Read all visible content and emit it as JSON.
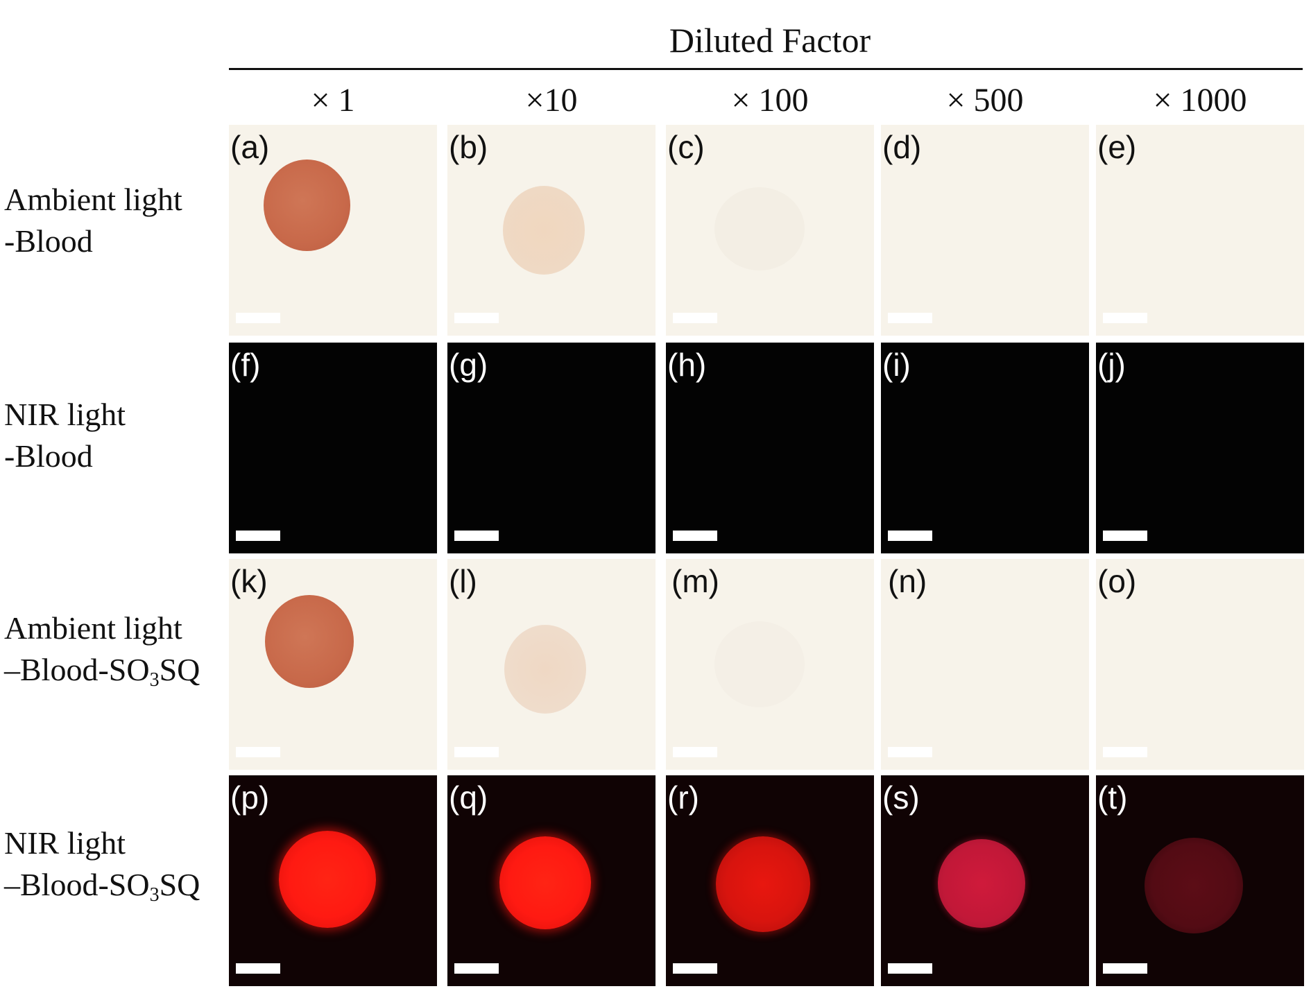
{
  "figure": {
    "header": "Diluted Factor",
    "columns": [
      "× 1",
      "×10",
      "× 100",
      "× 500",
      "× 1000"
    ],
    "rows": [
      {
        "label_line1": "Ambient light",
        "label_line2": "-Blood",
        "label_sub_base": "",
        "label_sub": "",
        "label_sub_tail": "",
        "panels": [
          "(a)",
          "(b)",
          "(c)",
          "(d)",
          "(e)"
        ]
      },
      {
        "label_line1": "NIR light",
        "label_line2": "-Blood",
        "label_sub_base": "",
        "label_sub": "",
        "label_sub_tail": "",
        "panels": [
          "(f)",
          "(g)",
          "(h)",
          "(i)",
          "(j)"
        ]
      },
      {
        "label_line1": "Ambient light",
        "label_line2": "",
        "label_sub_base": "–Blood-SO",
        "label_sub": "3",
        "label_sub_tail": "SQ",
        "panels": [
          "(k)",
          "(l)",
          "(m)",
          "(n)",
          "(o)"
        ]
      },
      {
        "label_line1": "NIR light",
        "label_line2": "",
        "label_sub_base": "–Blood-SO",
        "label_sub": "3",
        "label_sub_tail": "SQ",
        "panels": [
          "(p)",
          "(q)",
          "(r)",
          "(s)",
          "(t)"
        ]
      }
    ],
    "colors": {
      "ambient_background": "#f7f3ea",
      "nir_background": "#030303",
      "blood_spot": "#c8694a",
      "fluorescence_spot": "#ff1a12"
    }
  }
}
